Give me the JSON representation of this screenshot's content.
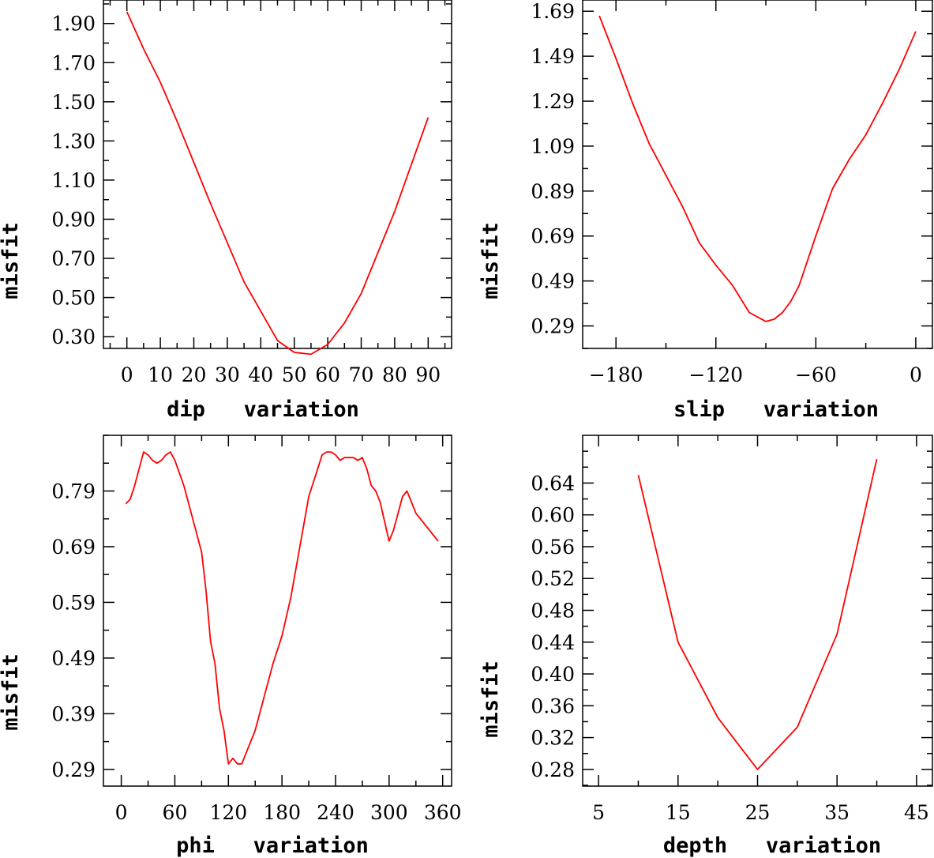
{
  "chart_data": [
    {
      "type": "line",
      "xlabel": "dip variation",
      "ylabel": "misfit",
      "xlim": [
        -7,
        97
      ],
      "ylim": [
        0.24,
        2.02
      ],
      "x_ticks": [
        0,
        10,
        20,
        30,
        40,
        50,
        60,
        70,
        80,
        90
      ],
      "x_tick_labels": [
        "0",
        "10",
        "20",
        "30",
        "40",
        "50",
        "60",
        "70",
        "80",
        "90"
      ],
      "y_ticks": [
        0.3,
        0.5,
        0.7,
        0.9,
        1.1,
        1.3,
        1.5,
        1.7,
        1.9
      ],
      "y_tick_labels": [
        "0.30",
        "0.50",
        "0.70",
        "0.90",
        "1.10",
        "1.30",
        "1.50",
        "1.70",
        "1.90"
      ],
      "series": [
        {
          "name": "misfit",
          "color": "#ff0000",
          "x": [
            0,
            5,
            10,
            15,
            20,
            25,
            30,
            35,
            40,
            45,
            50,
            55,
            60,
            65,
            70,
            75,
            80,
            85,
            90
          ],
          "y": [
            1.96,
            1.77,
            1.6,
            1.4,
            1.19,
            0.98,
            0.78,
            0.58,
            0.43,
            0.28,
            0.22,
            0.21,
            0.26,
            0.37,
            0.52,
            0.73,
            0.94,
            1.18,
            1.42
          ]
        }
      ]
    },
    {
      "type": "line",
      "xlabel": "slip variation",
      "ylabel": "misfit",
      "xlim": [
        -200,
        10
      ],
      "ylim": [
        0.19,
        1.74
      ],
      "x_ticks": [
        -180,
        -120,
        -60,
        0
      ],
      "x_tick_labels": [
        "-180",
        "-120",
        "-60",
        "0"
      ],
      "y_ticks": [
        0.29,
        0.49,
        0.69,
        0.89,
        1.09,
        1.29,
        1.49,
        1.69
      ],
      "y_tick_labels": [
        "0.29",
        "0.49",
        "0.69",
        "0.89",
        "1.09",
        "1.29",
        "1.49",
        "1.69"
      ],
      "series": [
        {
          "name": "misfit",
          "color": "#ff0000",
          "x": [
            -190,
            -180,
            -170,
            -160,
            -150,
            -140,
            -130,
            -120,
            -110,
            -100,
            -95,
            -90,
            -85,
            -80,
            -75,
            -70,
            -60,
            -50,
            -40,
            -30,
            -20,
            -10,
            0
          ],
          "y": [
            1.67,
            1.48,
            1.28,
            1.1,
            0.96,
            0.82,
            0.66,
            0.56,
            0.47,
            0.35,
            0.33,
            0.31,
            0.32,
            0.35,
            0.4,
            0.47,
            0.69,
            0.9,
            1.03,
            1.14,
            1.28,
            1.43,
            1.6
          ]
        }
      ]
    },
    {
      "type": "line",
      "xlabel": "phi variation",
      "ylabel": "misfit",
      "xlim": [
        -20,
        370
      ],
      "ylim": [
        0.26,
        0.89
      ],
      "x_ticks": [
        0,
        60,
        120,
        180,
        240,
        300,
        360
      ],
      "x_tick_labels": [
        "0",
        "60",
        "120",
        "180",
        "240",
        "300",
        "360"
      ],
      "y_ticks": [
        0.29,
        0.39,
        0.49,
        0.59,
        0.69,
        0.79
      ],
      "y_tick_labels": [
        "0.29",
        "0.39",
        "0.49",
        "0.59",
        "0.69",
        "0.79"
      ],
      "series": [
        {
          "name": "misfit",
          "color": "#ff0000",
          "x": [
            5,
            10,
            15,
            20,
            25,
            30,
            35,
            40,
            45,
            50,
            55,
            60,
            70,
            80,
            90,
            95,
            100,
            105,
            110,
            115,
            120,
            125,
            130,
            135,
            140,
            150,
            160,
            170,
            180,
            190,
            200,
            210,
            220,
            225,
            230,
            235,
            240,
            245,
            250,
            260,
            265,
            270,
            275,
            280,
            285,
            290,
            300,
            305,
            310,
            315,
            320,
            325,
            330,
            335,
            340,
            345,
            350,
            355
          ],
          "y": [
            0.767,
            0.775,
            0.8,
            0.83,
            0.86,
            0.855,
            0.845,
            0.84,
            0.845,
            0.855,
            0.86,
            0.845,
            0.8,
            0.74,
            0.68,
            0.61,
            0.52,
            0.48,
            0.4,
            0.36,
            0.3,
            0.31,
            0.3,
            0.3,
            0.32,
            0.36,
            0.42,
            0.48,
            0.53,
            0.6,
            0.69,
            0.78,
            0.83,
            0.855,
            0.86,
            0.86,
            0.855,
            0.845,
            0.85,
            0.85,
            0.845,
            0.85,
            0.83,
            0.8,
            0.79,
            0.77,
            0.7,
            0.72,
            0.75,
            0.78,
            0.79,
            0.77,
            0.75,
            0.74,
            0.73,
            0.72,
            0.71,
            0.7
          ]
        }
      ]
    },
    {
      "type": "line",
      "xlabel": "depth variation",
      "ylabel": "misfit",
      "xlim": [
        3,
        47
      ],
      "ylim": [
        0.259,
        0.7
      ],
      "x_ticks": [
        5,
        15,
        25,
        35,
        45
      ],
      "x_tick_labels": [
        "5",
        "15",
        "25",
        "35",
        "45"
      ],
      "y_ticks": [
        0.28,
        0.32,
        0.36,
        0.4,
        0.44,
        0.48,
        0.52,
        0.56,
        0.6,
        0.64
      ],
      "y_tick_labels": [
        "0.28",
        "0.32",
        "0.36",
        "0.40",
        "0.44",
        "0.48",
        "0.52",
        "0.56",
        "0.60",
        "0.64"
      ],
      "series": [
        {
          "name": "misfit",
          "color": "#ff0000",
          "x": [
            10,
            15,
            20,
            25,
            30,
            35,
            40
          ],
          "y": [
            0.65,
            0.44,
            0.345,
            0.28,
            0.333,
            0.45,
            0.67
          ]
        }
      ]
    }
  ]
}
